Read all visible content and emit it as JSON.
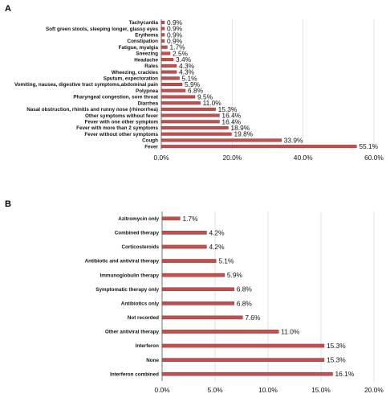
{
  "chart_data": [
    {
      "type": "bar",
      "orientation": "horizontal",
      "panel_label": "A",
      "categories": [
        "Tachycardia",
        "Soft green stools, sleeping longer, glassy eyes",
        "Erythema",
        "Constipation",
        "Fatigue, myalgia",
        "Sneezing",
        "Headache",
        "Rales",
        "Wheezing, crackles",
        "Sputum, expectoration",
        "Vomiting, nausea, digestive tract symptoms,abdominal pain",
        "Polypnea",
        "Pharyngeal congestion, sore throat",
        "Diarrhea",
        "Nasal obstruction, rhinitis and runny nose (rhinorrhea)",
        "Other symptoms without fever",
        "Fever with one other symptom",
        "Fever with more than 2 symptoms",
        "Fever without other symptoms",
        "Cough",
        "Fever"
      ],
      "values": [
        0.9,
        0.9,
        0.9,
        0.9,
        1.7,
        2.5,
        3.4,
        4.3,
        4.3,
        5.1,
        5.9,
        6.8,
        9.5,
        11.0,
        15.3,
        16.4,
        16.4,
        18.9,
        19.8,
        33.9,
        55.1
      ],
      "value_labels": [
        "0.9%",
        "0.9%",
        "0.9%",
        "0.9%",
        "1.7%",
        "2.5%",
        "3.4%",
        "4.3%",
        "4.3%",
        "5.1%",
        "5.9%",
        "6.8%",
        "9.5%",
        "11.0%",
        "15.3%",
        "16.4%",
        "16.4%",
        "18.9%",
        "19.8%",
        "33.9%",
        "55.1%"
      ],
      "xlim": [
        0,
        60
      ],
      "xticks": [
        "0.0%",
        "20.0%",
        "40.0%",
        "60.0%"
      ],
      "grid": true,
      "bar_color": "#c0504d",
      "bar_edge_color": "#8b2a28"
    },
    {
      "type": "bar",
      "orientation": "horizontal",
      "panel_label": "B",
      "categories": [
        "Azitromycin only",
        "Combined therapy",
        "Corticosteroids",
        "Antibiotic and  antiviral therapy",
        "Immunoglobulin therapy",
        "Symptomatic therapy only",
        "Antibiotics only",
        "Not recorded",
        "Other antiviral therapy",
        "Interferon",
        "None",
        "Interferon combined"
      ],
      "values": [
        1.7,
        4.2,
        4.2,
        5.1,
        5.9,
        6.8,
        6.8,
        7.6,
        11.0,
        15.3,
        15.3,
        16.1
      ],
      "value_labels": [
        "1.7%",
        "4.2%",
        "4.2%",
        "5.1%",
        "5.9%",
        "6.8%",
        "6.8%",
        "7.6%",
        "11.0%",
        "15.3%",
        "15.3%",
        "16.1%"
      ],
      "xlim": [
        0,
        20
      ],
      "xticks": [
        "0.0%",
        "5.0%",
        "10.0%",
        "15.0%",
        "20.0%"
      ],
      "grid": true,
      "bar_color": "#c0504d",
      "bar_edge_color": "#8b2a28"
    }
  ]
}
